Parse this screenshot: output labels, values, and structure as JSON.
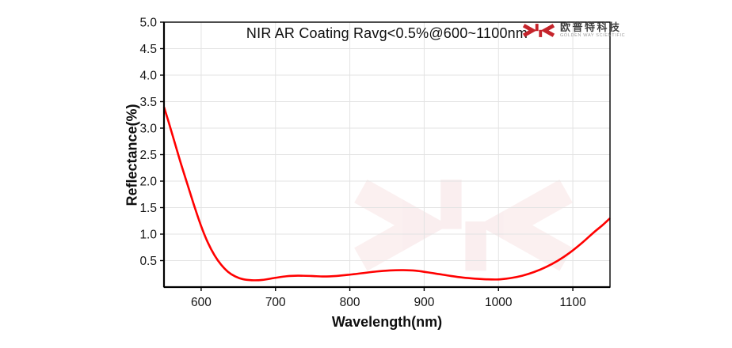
{
  "logo": {
    "name_cn": "欧普特科技",
    "name_en": "GOLDEN WAY SCIENTIFIC",
    "brand_color": "#c5242b"
  },
  "chart_data": {
    "type": "line",
    "title": "NIR AR Coating Ravg<0.5%@600~1100nm",
    "xlabel": "Wavelength(nm)",
    "ylabel": "Reflectance(%)",
    "xlim": [
      550,
      1150
    ],
    "ylim": [
      0,
      5
    ],
    "x_ticks": [
      600,
      700,
      800,
      900,
      1000,
      1100
    ],
    "y_ticks": [
      0.5,
      1.0,
      1.5,
      2.0,
      2.5,
      3.0,
      3.5,
      4.0,
      4.5,
      5.0
    ],
    "y_tick_labels": [
      "0.5",
      "1.0",
      "1.5",
      "2.0",
      "2.5",
      "3.0",
      "3.5",
      "4.0",
      "4.5",
      "5.0"
    ],
    "grid": true,
    "grid_color": "#e3e3e3",
    "legend_position": "none",
    "line_color": "#ff0000",
    "line_width": 2.6,
    "watermark": "faint JC brand glyph, center-right of plot",
    "series": [
      {
        "name": "Reflectance",
        "x": [
          550,
          557,
          565,
          573,
          582,
          591,
          600,
          609,
          618,
          627,
          636,
          646,
          656,
          668,
          682,
          700,
          715,
          730,
          748,
          765,
          782,
          800,
          818,
          836,
          854,
          872,
          888,
          904,
          920,
          936,
          952,
          968,
          984,
          1000,
          1016,
          1032,
          1048,
          1064,
          1080,
          1096,
          1112,
          1128,
          1140,
          1150
        ],
        "y": [
          3.4,
          3.08,
          2.7,
          2.32,
          1.92,
          1.52,
          1.15,
          0.84,
          0.6,
          0.42,
          0.29,
          0.2,
          0.15,
          0.13,
          0.135,
          0.175,
          0.205,
          0.215,
          0.21,
          0.2,
          0.21,
          0.235,
          0.265,
          0.295,
          0.315,
          0.32,
          0.31,
          0.28,
          0.245,
          0.21,
          0.18,
          0.16,
          0.147,
          0.145,
          0.17,
          0.215,
          0.285,
          0.38,
          0.5,
          0.65,
          0.83,
          1.03,
          1.17,
          1.3
        ]
      }
    ]
  }
}
